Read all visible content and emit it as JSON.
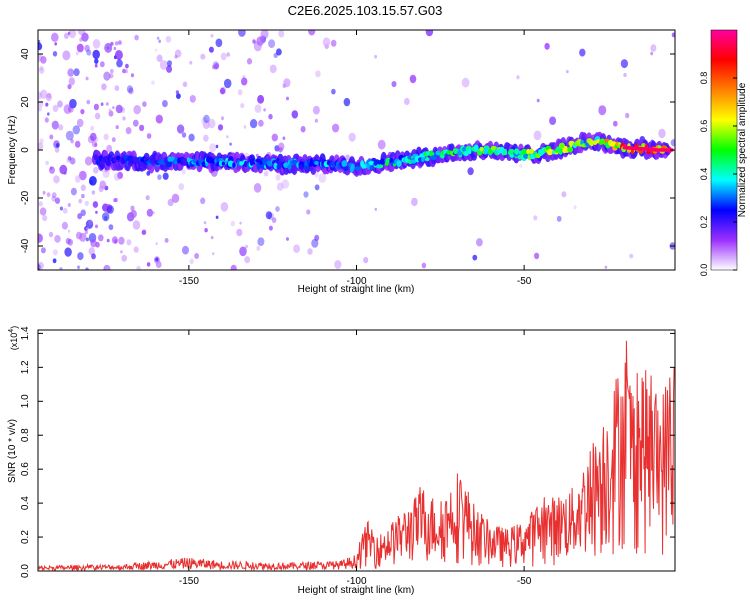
{
  "title": "C2E6.2025.103.15.57.G03",
  "chart_data": [
    {
      "type": "heatmap",
      "xlabel": "Height of straight line (km)",
      "ylabel": "Frequency (Hz)",
      "xlim": [
        -195,
        -5
      ],
      "ylim": [
        -50,
        50
      ],
      "xticks": [
        -150,
        -100,
        -50
      ],
      "yticks": [
        -40,
        -20,
        0,
        20,
        40
      ],
      "colorbar": {
        "label": "Normalized spectral amplitude",
        "range": [
          0.0,
          1.0
        ],
        "ticks": [
          "0.0",
          "0.2",
          "0.4",
          "0.6",
          "0.8"
        ],
        "colormap": [
          "#ffffff",
          "#9b30ff",
          "#0000ff",
          "#00ffff",
          "#00ff00",
          "#ffff00",
          "#ff8000",
          "#ff0000",
          "#ff00a0"
        ]
      },
      "ridge": {
        "x": [
          -178,
          -160,
          -140,
          -120,
          -110,
          -100,
          -90,
          -80,
          -70,
          -60,
          -50,
          -40,
          -30,
          -20,
          -10,
          -7
        ],
        "y": [
          -4,
          -5,
          -5,
          -6,
          -6,
          -7,
          -5,
          -3,
          -1,
          0,
          -2,
          0,
          4,
          1,
          0,
          0
        ],
        "amplitude": [
          0.25,
          0.3,
          0.35,
          0.35,
          0.35,
          0.35,
          0.45,
          0.45,
          0.5,
          0.55,
          0.55,
          0.6,
          0.55,
          0.9,
          0.95,
          0.95
        ]
      },
      "grid": false
    },
    {
      "type": "line",
      "xlabel": "Height of straight line (km)",
      "ylabel": "SNR (10 * v/v)",
      "yscale_label": "(x10",
      "yscale_exponent": "4",
      "xlim": [
        -195,
        -5
      ],
      "ylim": [
        0,
        1.42
      ],
      "xticks": [
        -150,
        -100,
        -50
      ],
      "yticks": [
        "0.0",
        "0.2",
        "0.4",
        "0.6",
        "0.8",
        "1.0",
        "1.2",
        "1.4"
      ],
      "series": [
        {
          "color": "#e83030",
          "envelope": {
            "x": [
              -195,
              -170,
              -150,
              -140,
              -120,
              -105,
              -100,
              -97,
              -93,
              -85,
              -80,
              -75,
              -70,
              -68,
              -65,
              -60,
              -55,
              -50,
              -48,
              -45,
              -40,
              -35,
              -30,
              -25,
              -20,
              -17,
              -15,
              -10,
              -7,
              -5
            ],
            "y": [
              0.03,
              0.04,
              0.08,
              0.06,
              0.05,
              0.06,
              0.1,
              0.3,
              0.22,
              0.38,
              0.5,
              0.4,
              0.6,
              0.55,
              0.4,
              0.28,
              0.25,
              0.3,
              0.35,
              0.42,
              0.45,
              0.5,
              0.75,
              1.0,
              1.35,
              1.1,
              1.25,
              1.0,
              1.18,
              1.3
            ]
          }
        }
      ],
      "grid": false
    }
  ]
}
